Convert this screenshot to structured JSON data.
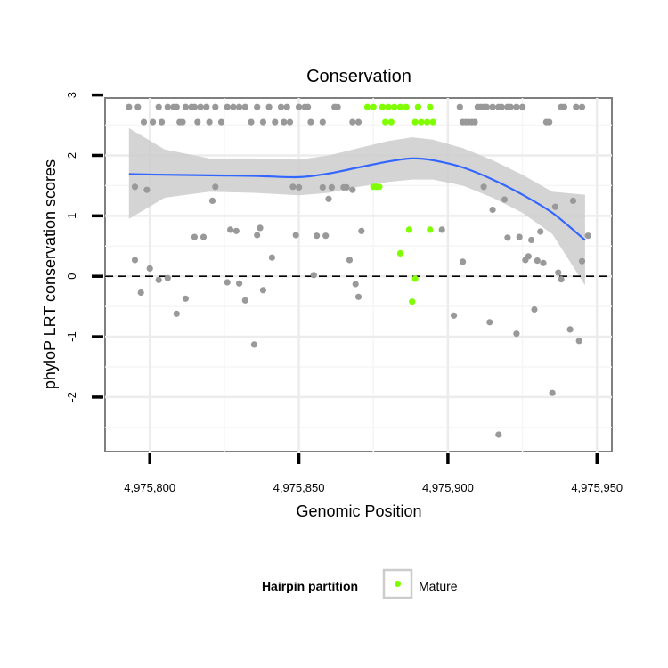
{
  "chart_data": {
    "type": "scatter",
    "title": "Conservation",
    "xlabel": "Genomic Position",
    "ylabel": "phyloP LRT conservation scores",
    "xlim": [
      4975785,
      4975955
    ],
    "ylim": [
      -2.9,
      2.95
    ],
    "x_ticks": [
      4975800,
      4975850,
      4975900,
      4975950
    ],
    "x_tick_labels": [
      "4,975,800",
      "4,975,850",
      "4,975,900",
      "4,975,950"
    ],
    "y_ticks": [
      -2,
      -1,
      0,
      1,
      2,
      3
    ],
    "y_tick_labels": [
      "-2",
      "-1",
      "0",
      "1",
      "2",
      "3"
    ],
    "grid": true,
    "reference_line": {
      "y": 0,
      "style": "dashed"
    },
    "legend": {
      "title": "Hairpin partition",
      "entries": [
        {
          "label": "Mature",
          "color": "#7fff00"
        }
      ],
      "position": "bottom"
    },
    "colors": {
      "other": "#999999",
      "mature": "#7fff00",
      "smooth": "#3366ff",
      "ribbon": "#cccccc"
    },
    "smooth": {
      "x": [
        4975793,
        4975805,
        4975820,
        4975835,
        4975850,
        4975860,
        4975870,
        4975880,
        4975888,
        4975895,
        4975905,
        4975915,
        4975925,
        4975935,
        4975946
      ],
      "y": [
        1.69,
        1.68,
        1.67,
        1.66,
        1.64,
        1.7,
        1.8,
        1.9,
        1.95,
        1.92,
        1.8,
        1.6,
        1.35,
        1.05,
        0.6
      ],
      "ymin": [
        0.95,
        1.3,
        1.4,
        1.38,
        1.34,
        1.38,
        1.48,
        1.56,
        1.6,
        1.6,
        1.5,
        1.3,
        1.05,
        0.7,
        -0.15
      ],
      "ymax": [
        2.45,
        2.1,
        1.95,
        1.95,
        1.93,
        2.0,
        2.12,
        2.24,
        2.3,
        2.26,
        2.12,
        1.92,
        1.68,
        1.4,
        1.35
      ]
    },
    "series": [
      {
        "name": "Other",
        "points": [
          [
            4975793,
            2.8
          ],
          [
            4975796,
            2.8
          ],
          [
            4975798,
            2.55
          ],
          [
            4975801,
            2.55
          ],
          [
            4975803,
            2.8
          ],
          [
            4975804,
            2.55
          ],
          [
            4975806,
            2.8
          ],
          [
            4975808,
            2.8
          ],
          [
            4975809,
            2.8
          ],
          [
            4975810,
            2.55
          ],
          [
            4975811,
            2.55
          ],
          [
            4975812,
            2.8
          ],
          [
            4975814,
            2.8
          ],
          [
            4975815,
            2.8
          ],
          [
            4975816,
            2.55
          ],
          [
            4975817,
            2.8
          ],
          [
            4975819,
            2.8
          ],
          [
            4975820,
            2.55
          ],
          [
            4975822,
            2.8
          ],
          [
            4975824,
            2.55
          ],
          [
            4975826,
            2.8
          ],
          [
            4975828,
            2.8
          ],
          [
            4975830,
            2.8
          ],
          [
            4975832,
            2.8
          ],
          [
            4975834,
            2.55
          ],
          [
            4975836,
            2.8
          ],
          [
            4975838,
            2.55
          ],
          [
            4975840,
            2.8
          ],
          [
            4975842,
            2.55
          ],
          [
            4975844,
            2.8
          ],
          [
            4975845,
            2.55
          ],
          [
            4975846,
            2.8
          ],
          [
            4975847,
            2.55
          ],
          [
            4975850,
            2.8
          ],
          [
            4975852,
            2.8
          ],
          [
            4975853,
            2.8
          ],
          [
            4975854,
            2.55
          ],
          [
            4975858,
            2.55
          ],
          [
            4975862,
            2.8
          ],
          [
            4975863,
            2.8
          ],
          [
            4975868,
            2.55
          ],
          [
            4975870,
            2.55
          ],
          [
            4975904,
            2.8
          ],
          [
            4975905,
            2.55
          ],
          [
            4975906,
            2.55
          ],
          [
            4975907,
            2.55
          ],
          [
            4975908,
            2.55
          ],
          [
            4975909,
            2.55
          ],
          [
            4975910,
            2.8
          ],
          [
            4975911,
            2.8
          ],
          [
            4975912,
            2.8
          ],
          [
            4975913,
            2.8
          ],
          [
            4975915,
            2.8
          ],
          [
            4975917,
            2.8
          ],
          [
            4975918,
            2.8
          ],
          [
            4975920,
            2.8
          ],
          [
            4975921,
            2.8
          ],
          [
            4975923,
            2.8
          ],
          [
            4975925,
            2.8
          ],
          [
            4975933,
            2.55
          ],
          [
            4975934,
            2.55
          ],
          [
            4975938,
            2.8
          ],
          [
            4975939,
            2.8
          ],
          [
            4975943,
            2.8
          ],
          [
            4975945,
            2.8
          ],
          [
            4975795,
            1.48
          ],
          [
            4975799,
            1.43
          ],
          [
            4975795,
            0.27
          ],
          [
            4975797,
            -0.27
          ],
          [
            4975800,
            0.13
          ],
          [
            4975803,
            -0.06
          ],
          [
            4975806,
            -0.03
          ],
          [
            4975809,
            -0.62
          ],
          [
            4975812,
            -0.37
          ],
          [
            4975815,
            0.65
          ],
          [
            4975818,
            0.65
          ],
          [
            4975821,
            1.25
          ],
          [
            4975822,
            1.48
          ],
          [
            4975827,
            0.77
          ],
          [
            4975829,
            0.75
          ],
          [
            4975826,
            -0.1
          ],
          [
            4975830,
            -0.12
          ],
          [
            4975832,
            -0.4
          ],
          [
            4975835,
            -1.13
          ],
          [
            4975836,
            0.68
          ],
          [
            4975837,
            0.8
          ],
          [
            4975838,
            -0.23
          ],
          [
            4975841,
            0.31
          ],
          [
            4975848,
            1.48
          ],
          [
            4975849,
            0.68
          ],
          [
            4975850,
            1.47
          ],
          [
            4975855,
            0.02
          ],
          [
            4975856,
            0.67
          ],
          [
            4975858,
            1.47
          ],
          [
            4975859,
            0.67
          ],
          [
            4975860,
            1.28
          ],
          [
            4975861,
            1.47
          ],
          [
            4975865,
            1.47
          ],
          [
            4975866,
            1.47
          ],
          [
            4975867,
            0.27
          ],
          [
            4975868,
            1.43
          ],
          [
            4975869,
            -0.13
          ],
          [
            4975870,
            -0.34
          ],
          [
            4975871,
            0.75
          ],
          [
            4975898,
            0.77
          ],
          [
            4975902,
            -0.65
          ],
          [
            4975905,
            0.24
          ],
          [
            4975912,
            1.48
          ],
          [
            4975914,
            -0.76
          ],
          [
            4975915,
            1.1
          ],
          [
            4975917,
            -2.62
          ],
          [
            4975919,
            1.27
          ],
          [
            4975920,
            0.64
          ],
          [
            4975923,
            -0.95
          ],
          [
            4975924,
            0.65
          ],
          [
            4975926,
            0.27
          ],
          [
            4975927,
            0.33
          ],
          [
            4975928,
            0.6
          ],
          [
            4975929,
            -0.55
          ],
          [
            4975930,
            0.26
          ],
          [
            4975931,
            0.74
          ],
          [
            4975932,
            0.22
          ],
          [
            4975935,
            -1.93
          ],
          [
            4975936,
            1.15
          ],
          [
            4975937,
            0.06
          ],
          [
            4975938,
            -0.05
          ],
          [
            4975941,
            -0.88
          ],
          [
            4975942,
            1.25
          ],
          [
            4975944,
            -1.07
          ],
          [
            4975945,
            0.25
          ],
          [
            4975947,
            0.67
          ]
        ]
      },
      {
        "name": "Mature",
        "points": [
          [
            4975873,
            2.8
          ],
          [
            4975875,
            2.8
          ],
          [
            4975878,
            2.8
          ],
          [
            4975880,
            2.8
          ],
          [
            4975882,
            2.8
          ],
          [
            4975884,
            2.8
          ],
          [
            4975886,
            2.8
          ],
          [
            4975890,
            2.8
          ],
          [
            4975894,
            2.8
          ],
          [
            4975879,
            2.55
          ],
          [
            4975881,
            2.55
          ],
          [
            4975889,
            2.55
          ],
          [
            4975891,
            2.55
          ],
          [
            4975893,
            2.55
          ],
          [
            4975895,
            2.55
          ],
          [
            4975875,
            1.48
          ],
          [
            4975876,
            1.48
          ],
          [
            4975877,
            1.48
          ],
          [
            4975887,
            0.77
          ],
          [
            4975894,
            0.77
          ],
          [
            4975884,
            0.38
          ],
          [
            4975889,
            -0.04
          ],
          [
            4975888,
            -0.42
          ]
        ]
      }
    ]
  }
}
